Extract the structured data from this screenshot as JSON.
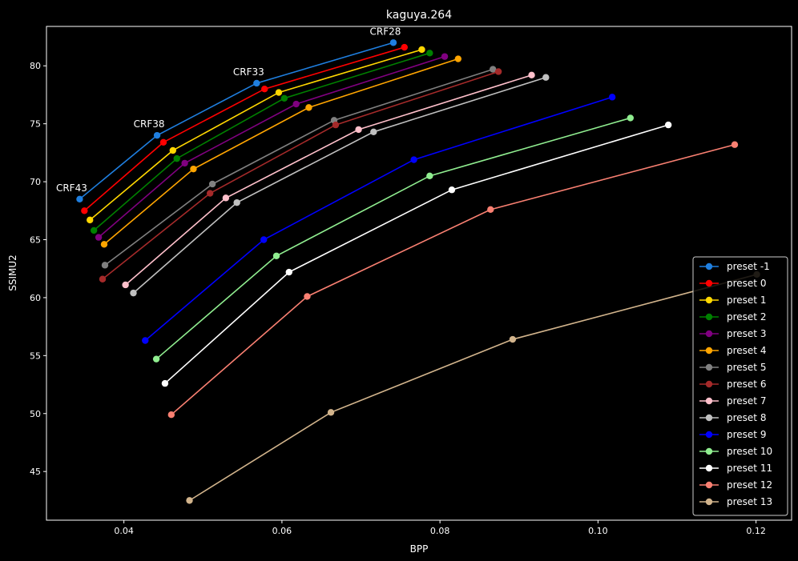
{
  "chart_data": {
    "type": "line",
    "title": "kaguya.264",
    "xlabel": "BPP",
    "ylabel": "SSIMU2",
    "xlim": [
      0.0302,
      0.1245
    ],
    "ylim": [
      40.8,
      83.4
    ],
    "xticks": [
      {
        "value": 0.04,
        "label": "0.04"
      },
      {
        "value": 0.06,
        "label": "0.06"
      },
      {
        "value": 0.08,
        "label": "0.08"
      },
      {
        "value": 0.1,
        "label": "0.10"
      },
      {
        "value": 0.12,
        "label": "0.12"
      }
    ],
    "yticks": [
      {
        "value": 45,
        "label": "45"
      },
      {
        "value": 50,
        "label": "50"
      },
      {
        "value": 55,
        "label": "55"
      },
      {
        "value": 60,
        "label": "60"
      },
      {
        "value": 65,
        "label": "65"
      },
      {
        "value": 70,
        "label": "70"
      },
      {
        "value": 75,
        "label": "75"
      },
      {
        "value": 80,
        "label": "80"
      }
    ],
    "grid": false,
    "legend_position": "bottom-right",
    "annotations": [
      {
        "text": "CRF43",
        "x": 0.0344,
        "y": 68.5
      },
      {
        "text": "CRF38",
        "x": 0.0442,
        "y": 74.0
      },
      {
        "text": "CRF33",
        "x": 0.0568,
        "y": 78.5
      },
      {
        "text": "CRF28",
        "x": 0.0741,
        "y": 82.0
      }
    ],
    "series": [
      {
        "name": "preset -1",
        "color": "#1f7fe0",
        "x": [
          0.0344,
          0.0442,
          0.0568,
          0.0741
        ],
        "y": [
          68.5,
          74.0,
          78.5,
          82.0
        ]
      },
      {
        "name": "preset 0",
        "color": "#ff0000",
        "x": [
          0.035,
          0.045,
          0.0578,
          0.0755
        ],
        "y": [
          67.5,
          73.4,
          78.0,
          81.6
        ]
      },
      {
        "name": "preset 1",
        "color": "#ffd700",
        "x": [
          0.0357,
          0.0462,
          0.0596,
          0.0777
        ],
        "y": [
          66.7,
          72.7,
          77.7,
          81.4
        ]
      },
      {
        "name": "preset 2",
        "color": "#008000",
        "x": [
          0.0362,
          0.0467,
          0.0603,
          0.0787
        ],
        "y": [
          65.8,
          72.0,
          77.2,
          81.1
        ]
      },
      {
        "name": "preset 3",
        "color": "#800080",
        "x": [
          0.0368,
          0.0477,
          0.0618,
          0.0806
        ],
        "y": [
          65.2,
          71.6,
          76.7,
          80.8
        ]
      },
      {
        "name": "preset 4",
        "color": "#ffa500",
        "x": [
          0.0375,
          0.0488,
          0.0634,
          0.0823
        ],
        "y": [
          64.6,
          71.1,
          76.4,
          80.6
        ]
      },
      {
        "name": "preset 5",
        "color": "#808080",
        "x": [
          0.0376,
          0.0512,
          0.0666,
          0.0867
        ],
        "y": [
          62.8,
          69.8,
          75.3,
          79.7
        ]
      },
      {
        "name": "preset 6",
        "color": "#a52a2a",
        "x": [
          0.0373,
          0.0509,
          0.0668,
          0.0874
        ],
        "y": [
          61.6,
          69.0,
          74.9,
          79.5
        ]
      },
      {
        "name": "preset 7",
        "color": "#ffc0cb",
        "x": [
          0.0402,
          0.0529,
          0.0697,
          0.0916
        ],
        "y": [
          61.1,
          68.6,
          74.5,
          79.2
        ]
      },
      {
        "name": "preset 8",
        "color": "#c0c0c0",
        "x": [
          0.0412,
          0.0543,
          0.0716,
          0.0934
        ],
        "y": [
          60.4,
          68.2,
          74.3,
          79.0
        ]
      },
      {
        "name": "preset 9",
        "color": "#0000ff",
        "x": [
          0.0427,
          0.0577,
          0.0767,
          0.1018
        ],
        "y": [
          56.3,
          65.0,
          71.9,
          77.3
        ]
      },
      {
        "name": "preset 10",
        "color": "#90ee90",
        "x": [
          0.0441,
          0.0593,
          0.0787,
          0.1041
        ],
        "y": [
          54.7,
          63.6,
          70.5,
          75.5
        ]
      },
      {
        "name": "preset 11",
        "color": "#ffffff",
        "x": [
          0.0452,
          0.0609,
          0.0815,
          0.1089
        ],
        "y": [
          52.6,
          62.2,
          69.3,
          74.9
        ]
      },
      {
        "name": "preset 12",
        "color": "#fa8072",
        "x": [
          0.046,
          0.0632,
          0.0864,
          0.1173
        ],
        "y": [
          49.9,
          60.1,
          67.6,
          73.2
        ]
      },
      {
        "name": "preset 13",
        "color": "#d2b48c",
        "x": [
          0.0483,
          0.0662,
          0.0892,
          0.1201
        ],
        "y": [
          42.5,
          50.1,
          56.4,
          62.0
        ]
      }
    ]
  }
}
